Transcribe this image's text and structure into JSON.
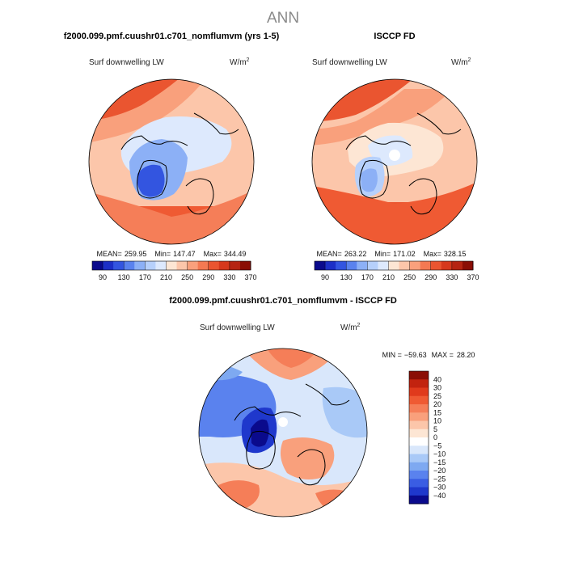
{
  "page_title": "ANN",
  "chart_data": [
    {
      "type": "heatmap",
      "projection": "north polar stereographic",
      "title": "f2000.099.pmf.cuushr01.c701_nomflumvm (yrs 1-5)",
      "variable": "Surf downwelling LW",
      "units": "W/m",
      "units_exponent": "2",
      "stats": {
        "mean_label": "MEAN=",
        "mean": "259.95",
        "min_label": "Min=",
        "min": "147.47",
        "max_label": "Max=",
        "max": "344.49"
      },
      "colorbar": {
        "tick_labels": [
          "90",
          "130",
          "170",
          "210",
          "250",
          "290",
          "330",
          "370"
        ],
        "colors": [
          "#0a0a8c",
          "#1c2fc6",
          "#3355e0",
          "#5a82ee",
          "#8cb0f6",
          "#b6d0fb",
          "#dde9fd",
          "#fde6d4",
          "#fcc6aa",
          "#f9a07c",
          "#f47952",
          "#ea5530",
          "#d6381c",
          "#b52412",
          "#8a0e05"
        ]
      }
    },
    {
      "type": "heatmap",
      "projection": "north polar stereographic",
      "title": "ISCCP FD",
      "variable": "Surf downwelling LW",
      "units": "W/m",
      "units_exponent": "2",
      "stats": {
        "mean_label": "MEAN=",
        "mean": "263.22",
        "min_label": "Min=",
        "min": "171.02",
        "max_label": "Max=",
        "max": "328.15"
      },
      "colorbar": {
        "tick_labels": [
          "90",
          "130",
          "170",
          "210",
          "250",
          "290",
          "330",
          "370"
        ],
        "colors": [
          "#0a0a8c",
          "#1c2fc6",
          "#3355e0",
          "#5a82ee",
          "#8cb0f6",
          "#b6d0fb",
          "#dde9fd",
          "#fde6d4",
          "#fcc6aa",
          "#f9a07c",
          "#f47952",
          "#ea5530",
          "#d6381c",
          "#b52412",
          "#8a0e05"
        ]
      }
    },
    {
      "type": "heatmap",
      "projection": "north polar stereographic",
      "title": "f2000.099.pmf.cuushr01.c701_nomflumvm - ISCCP FD",
      "variable": "Surf downwelling LW",
      "units": "W/m",
      "units_exponent": "2",
      "stats": {
        "min_label": "MIN =",
        "min": "−59.63",
        "max_label": "MAX =",
        "max": "28.20"
      },
      "colorbar": {
        "tick_labels": [
          "40",
          "30",
          "25",
          "20",
          "15",
          "10",
          "5",
          "0",
          "−5",
          "−10",
          "−15",
          "−20",
          "−25",
          "−30",
          "−40"
        ],
        "colors": [
          "#8a0e05",
          "#c2230f",
          "#e03a1c",
          "#ef5a33",
          "#f57e58",
          "#f9a07c",
          "#fcc6aa",
          "#fde6d4",
          "#ffffff",
          "#d9e7fb",
          "#a9c9f7",
          "#7ea9f1",
          "#5a82ee",
          "#3a5de3",
          "#1f38cc",
          "#0a0a8c"
        ]
      }
    }
  ]
}
